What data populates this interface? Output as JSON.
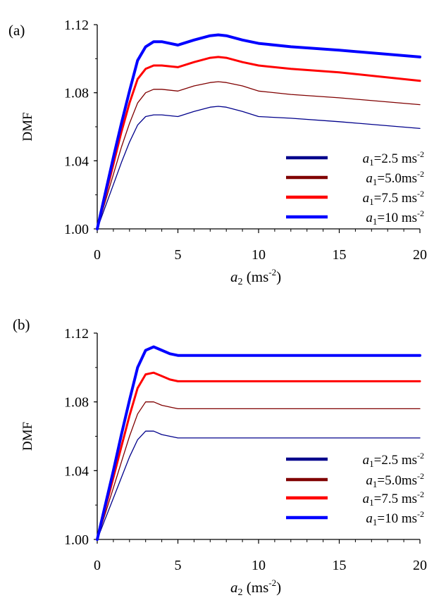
{
  "chart_data": [
    {
      "type": "line",
      "panel_label": "(a)",
      "ylabel": "DMF",
      "xlabel_var": "a",
      "xlabel_sub": "2",
      "xlabel_unit_pre": " (ms",
      "xlabel_unit_sup": "-2",
      "xlabel_unit_post": ")",
      "xlim": [
        0,
        20
      ],
      "ylim": [
        1.0,
        1.12
      ],
      "xticks": [
        "0",
        "5",
        "10",
        "15",
        "20"
      ],
      "yticks": [
        "1.00",
        "1.04",
        "1.08",
        "1.12"
      ],
      "grid": false,
      "legend_position": "bottom-right",
      "series": [
        {
          "name": "a1=2.5 ms-2",
          "legend_value": "=2.5 ms",
          "color": "#00008B",
          "x": [
            0,
            0.5,
            1,
            1.5,
            2,
            2.5,
            3,
            3.5,
            4,
            5,
            6,
            7,
            7.5,
            8,
            9,
            10,
            12,
            15,
            20
          ],
          "y": [
            1.0,
            1.013,
            1.026,
            1.039,
            1.051,
            1.061,
            1.066,
            1.067,
            1.067,
            1.066,
            1.069,
            1.0715,
            1.072,
            1.0715,
            1.069,
            1.066,
            1.065,
            1.063,
            1.059
          ]
        },
        {
          "name": "a1=5.0ms-2",
          "legend_value": "=5.0ms",
          "color": "#800000",
          "x": [
            0,
            0.5,
            1,
            1.5,
            2,
            2.5,
            3,
            3.5,
            4,
            5,
            6,
            7,
            7.5,
            8,
            9,
            10,
            12,
            15,
            20
          ],
          "y": [
            1.0,
            1.016,
            1.032,
            1.048,
            1.062,
            1.074,
            1.08,
            1.082,
            1.082,
            1.081,
            1.084,
            1.086,
            1.0865,
            1.086,
            1.084,
            1.081,
            1.079,
            1.077,
            1.073
          ]
        },
        {
          "name": "a1=7.5 ms-2",
          "legend_value": "=7.5 ms",
          "color": "#FF0000",
          "x": [
            0,
            0.5,
            1,
            1.5,
            2,
            2.5,
            3,
            3.5,
            4,
            5,
            6,
            7,
            7.5,
            8,
            9,
            10,
            12,
            15,
            20
          ],
          "y": [
            1.0,
            1.019,
            1.038,
            1.057,
            1.074,
            1.088,
            1.094,
            1.096,
            1.096,
            1.095,
            1.098,
            1.1005,
            1.101,
            1.1005,
            1.098,
            1.096,
            1.094,
            1.092,
            1.087
          ]
        },
        {
          "name": "a1=10 ms-2",
          "legend_value": "=10 ms",
          "color": "#0000FF",
          "x": [
            0,
            0.5,
            1,
            1.5,
            2,
            2.5,
            3,
            3.5,
            4,
            5,
            6,
            7,
            7.5,
            8,
            9,
            10,
            12,
            15,
            20
          ],
          "y": [
            1.0,
            1.021,
            1.042,
            1.062,
            1.081,
            1.099,
            1.107,
            1.11,
            1.11,
            1.108,
            1.111,
            1.1135,
            1.114,
            1.1135,
            1.111,
            1.109,
            1.107,
            1.105,
            1.101
          ]
        }
      ]
    },
    {
      "type": "line",
      "panel_label": "(b)",
      "ylabel": "DMF",
      "xlabel_var": "a",
      "xlabel_sub": "2",
      "xlabel_unit_pre": " (ms",
      "xlabel_unit_sup": "-2",
      "xlabel_unit_post": ")",
      "xlim": [
        0,
        20
      ],
      "ylim": [
        1.0,
        1.12
      ],
      "xticks": [
        "0",
        "5",
        "10",
        "15",
        "20"
      ],
      "yticks": [
        "1.00",
        "1.04",
        "1.08",
        "1.12"
      ],
      "grid": false,
      "legend_position": "bottom-right",
      "series": [
        {
          "name": "a1=2.5 ms-2",
          "legend_value": "=2.5 ms",
          "color": "#00008B",
          "x": [
            0,
            0.5,
            1,
            1.5,
            2,
            2.5,
            3,
            3.5,
            4,
            4.5,
            5,
            20
          ],
          "y": [
            1.0,
            1.012,
            1.024,
            1.036,
            1.048,
            1.058,
            1.063,
            1.063,
            1.061,
            1.06,
            1.059,
            1.059
          ]
        },
        {
          "name": "a1=5.0ms-2",
          "legend_value": "=5.0ms",
          "color": "#800000",
          "x": [
            0,
            0.5,
            1,
            1.5,
            2,
            2.5,
            3,
            3.5,
            4,
            4.5,
            5,
            20
          ],
          "y": [
            1.0,
            1.015,
            1.03,
            1.045,
            1.06,
            1.073,
            1.08,
            1.08,
            1.078,
            1.077,
            1.076,
            1.076
          ]
        },
        {
          "name": "a1=7.5 ms-2",
          "legend_value": "=7.5 ms",
          "color": "#FF0000",
          "x": [
            0,
            0.5,
            1,
            1.5,
            2,
            2.5,
            3,
            3.5,
            4,
            4.5,
            5,
            20
          ],
          "y": [
            1.0,
            1.018,
            1.036,
            1.054,
            1.072,
            1.088,
            1.096,
            1.097,
            1.095,
            1.093,
            1.092,
            1.092
          ]
        },
        {
          "name": "a1=10 ms-2",
          "legend_value": "=10 ms",
          "color": "#0000FF",
          "x": [
            0,
            0.5,
            1,
            1.5,
            2,
            2.5,
            3,
            3.5,
            4,
            4.5,
            5,
            20
          ],
          "y": [
            1.0,
            1.02,
            1.04,
            1.061,
            1.081,
            1.1,
            1.11,
            1.112,
            1.11,
            1.108,
            1.107,
            1.107
          ]
        }
      ]
    }
  ]
}
